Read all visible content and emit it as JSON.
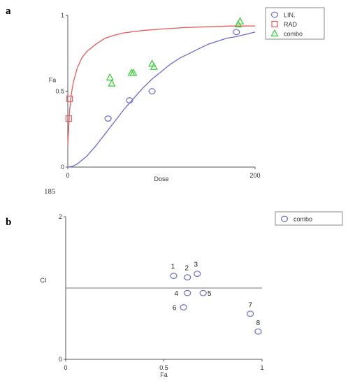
{
  "panels": {
    "a_label": "a",
    "b_label": "b"
  },
  "page_number": "185",
  "colors": {
    "lin": "#6a6ad8",
    "rad": "#e55a5a",
    "combo_a": "#33cc33",
    "combo_b": "#6a6ad8",
    "axis": "#555555",
    "text": "#333333"
  },
  "chart_data": [
    {
      "id": "a",
      "type": "scatter",
      "xlabel": "Dose",
      "ylabel": "Fa",
      "xlim": [
        0,
        200
      ],
      "ylim": [
        0,
        1
      ],
      "x_ticks": [
        {
          "value": 0,
          "label": "0"
        },
        {
          "value": 200,
          "label": "200"
        }
      ],
      "y_ticks": [
        {
          "value": 0,
          "label": "0"
        },
        {
          "value": 0.5,
          "label": "0.5"
        },
        {
          "value": 1,
          "label": "1"
        }
      ],
      "legend_position": "top-right",
      "series": [
        {
          "name": "LIN.",
          "marker": "circle",
          "color": "#6a6ad8",
          "points": [
            [
              43,
              0.32
            ],
            [
              66,
              0.44
            ],
            [
              90,
              0.5
            ],
            [
              180,
              0.89
            ]
          ],
          "curve": [
            [
              0,
              0.0
            ],
            [
              5,
              0.005
            ],
            [
              10,
              0.02
            ],
            [
              20,
              0.07
            ],
            [
              30,
              0.14
            ],
            [
              40,
              0.22
            ],
            [
              50,
              0.3
            ],
            [
              60,
              0.38
            ],
            [
              70,
              0.45
            ],
            [
              80,
              0.52
            ],
            [
              90,
              0.58
            ],
            [
              100,
              0.63
            ],
            [
              110,
              0.68
            ],
            [
              120,
              0.72
            ],
            [
              130,
              0.75
            ],
            [
              140,
              0.78
            ],
            [
              150,
              0.81
            ],
            [
              160,
              0.83
            ],
            [
              170,
              0.85
            ],
            [
              180,
              0.86
            ],
            [
              190,
              0.875
            ],
            [
              200,
              0.89
            ]
          ]
        },
        {
          "name": "RAD",
          "marker": "square",
          "color": "#e55a5a",
          "points": [
            [
              1,
              0.32
            ],
            [
              2,
              0.45
            ]
          ],
          "curve": [
            [
              0,
              0.14
            ],
            [
              1,
              0.26
            ],
            [
              2,
              0.38
            ],
            [
              4,
              0.49
            ],
            [
              6,
              0.56
            ],
            [
              10,
              0.65
            ],
            [
              15,
              0.72
            ],
            [
              20,
              0.76
            ],
            [
              30,
              0.81
            ],
            [
              40,
              0.85
            ],
            [
              50,
              0.87
            ],
            [
              60,
              0.885
            ],
            [
              80,
              0.9
            ],
            [
              100,
              0.91
            ],
            [
              125,
              0.92
            ],
            [
              150,
              0.925
            ],
            [
              175,
              0.93
            ],
            [
              200,
              0.93
            ]
          ]
        },
        {
          "name": "combo",
          "marker": "triangle",
          "color": "#33cc33",
          "points": [
            [
              45,
              0.59
            ],
            [
              47,
              0.55
            ],
            [
              68,
              0.62
            ],
            [
              70,
              0.62
            ],
            [
              90,
              0.68
            ],
            [
              92,
              0.66
            ],
            [
              182,
              0.94
            ],
            [
              184,
              0.96
            ]
          ]
        }
      ]
    },
    {
      "id": "b",
      "type": "scatter",
      "xlabel": "Fa",
      "ylabel": "CI",
      "xlim": [
        0,
        1
      ],
      "ylim": [
        0,
        2
      ],
      "x_ticks": [
        {
          "value": 0,
          "label": "0"
        },
        {
          "value": 0.5,
          "label": "0.5"
        },
        {
          "value": 1,
          "label": "1"
        }
      ],
      "y_ticks": [
        {
          "value": 0,
          "label": "0"
        },
        {
          "value": 2,
          "label": "2"
        }
      ],
      "reference_line": 1,
      "legend_position": "top-right",
      "series": [
        {
          "name": "combo",
          "marker": "circle",
          "color": "#6a6ad8",
          "points": [
            {
              "label": "1",
              "x": 0.55,
              "y": 1.17
            },
            {
              "label": "2",
              "x": 0.62,
              "y": 1.15
            },
            {
              "label": "3",
              "x": 0.67,
              "y": 1.2
            },
            {
              "label": "4",
              "x": 0.62,
              "y": 0.93
            },
            {
              "label": "5",
              "x": 0.7,
              "y": 0.93
            },
            {
              "label": "6",
              "x": 0.6,
              "y": 0.73
            },
            {
              "label": "7",
              "x": 0.94,
              "y": 0.64
            },
            {
              "label": "8",
              "x": 0.98,
              "y": 0.39
            }
          ]
        }
      ]
    }
  ]
}
